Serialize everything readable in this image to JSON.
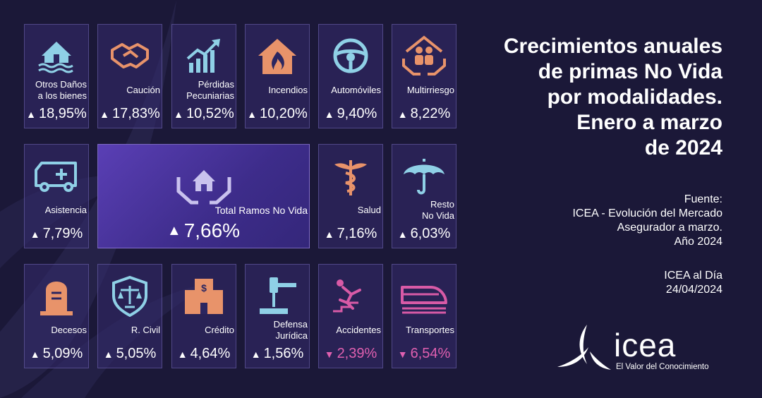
{
  "header": {
    "title_lines": [
      "Crecimientos anuales",
      "de primas No Vida",
      "por modalidades.",
      "Enero a marzo",
      "de 2024"
    ]
  },
  "source": {
    "lines": [
      "Fuente:",
      "ICEA - Evolución del Mercado",
      "Asegurador a marzo.",
      "Año 2024"
    ]
  },
  "news": {
    "lines": [
      "ICEA al Día",
      "24/04/2024"
    ]
  },
  "logo": {
    "word": "icea",
    "tagline": "El Valor del Conocimiento"
  },
  "colors": {
    "background": "#1b1838",
    "icon_salmon": "#e8936a",
    "icon_blue": "#8fd0e6",
    "icon_pink": "#d85aa6",
    "negative": "#e060b0",
    "tile_highlight": "#5a3fb5"
  },
  "tiles": [
    {
      "label": [
        "Otros Daños",
        "a los bienes"
      ],
      "value": "18,95%",
      "trend": "up",
      "icon": "flooded-house-icon"
    },
    {
      "label": [
        "Caución"
      ],
      "value": "17,83%",
      "trend": "up",
      "icon": "handshake-icon"
    },
    {
      "label": [
        "Pérdidas",
        "Pecuniarias"
      ],
      "value": "10,52%",
      "trend": "up",
      "icon": "growth-chart-icon"
    },
    {
      "label": [
        "Incendios"
      ],
      "value": "10,20%",
      "trend": "up",
      "icon": "burning-house-icon"
    },
    {
      "label": [
        "Automóviles"
      ],
      "value": "9,40%",
      "trend": "up",
      "icon": "steering-wheel-icon"
    },
    {
      "label": [
        "Multirriesgo"
      ],
      "value": "8,22%",
      "trend": "up",
      "icon": "family-protection-icon"
    },
    {
      "label": [
        "Asistencia"
      ],
      "value": "7,79%",
      "trend": "up",
      "icon": "ambulance-icon"
    },
    {
      "label": [
        "Total Ramos No Vida"
      ],
      "value": "7,66%",
      "trend": "up",
      "icon": "house-hands-icon"
    },
    {
      "label": [
        "Salud"
      ],
      "value": "7,16%",
      "trend": "up",
      "icon": "caduceus-icon"
    },
    {
      "label": [
        "Resto",
        "No Vida"
      ],
      "value": "6,03%",
      "trend": "up",
      "icon": "umbrella-icon"
    },
    {
      "label": [
        "Decesos"
      ],
      "value": "5,09%",
      "trend": "up",
      "icon": "tombstone-icon"
    },
    {
      "label": [
        "R. Civil"
      ],
      "value": "5,05%",
      "trend": "up",
      "icon": "justice-shield-icon"
    },
    {
      "label": [
        "Crédito"
      ],
      "value": "4,64%",
      "trend": "up",
      "icon": "bank-building-icon"
    },
    {
      "label": [
        "Defensa",
        "Jurídica"
      ],
      "value": "1,56%",
      "trend": "up",
      "icon": "gavel-icon"
    },
    {
      "label": [
        "Accidentes"
      ],
      "value": "2,39%",
      "trend": "down",
      "icon": "falling-person-icon"
    },
    {
      "label": [
        "Transportes"
      ],
      "value": "6,54%",
      "trend": "down",
      "icon": "train-icon"
    }
  ]
}
